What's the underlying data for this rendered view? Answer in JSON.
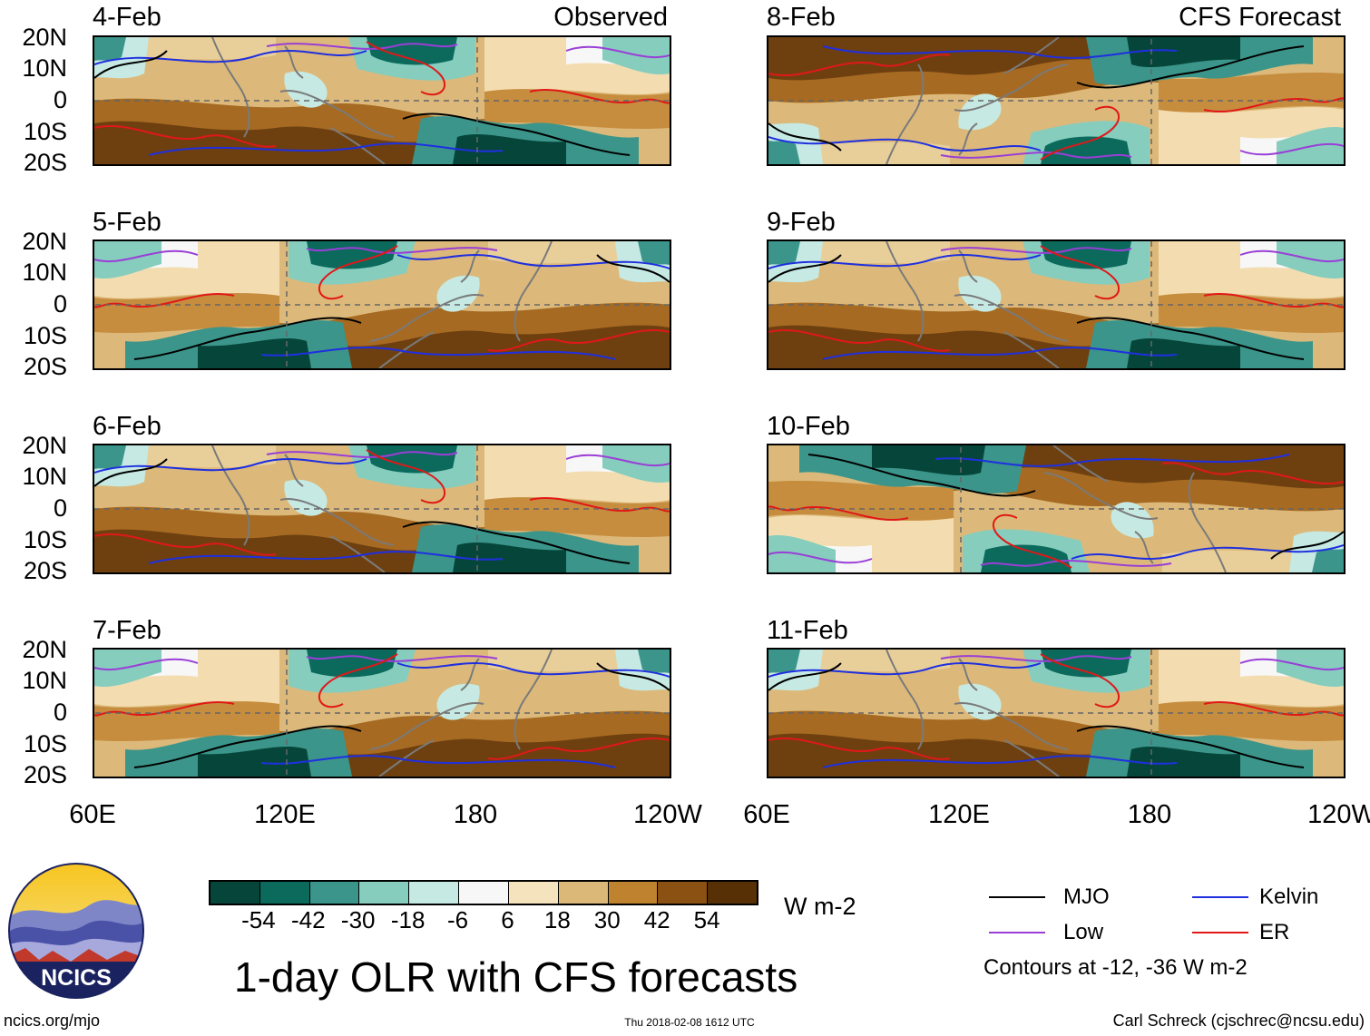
{
  "labels": {
    "observed": "Observed",
    "forecast": "CFS Forecast"
  },
  "panels_left": [
    {
      "date": "4-Feb"
    },
    {
      "date": "5-Feb"
    },
    {
      "date": "6-Feb"
    },
    {
      "date": "7-Feb"
    }
  ],
  "panels_right": [
    {
      "date": "8-Feb"
    },
    {
      "date": "9-Feb"
    },
    {
      "date": "10-Feb"
    },
    {
      "date": "11-Feb"
    }
  ],
  "y_ticks": [
    "20N",
    "10N",
    "0",
    "10S",
    "20S"
  ],
  "x_ticks": [
    "60E",
    "120E",
    "180",
    "120W"
  ],
  "colorbar": {
    "labels": [
      "-54",
      "-42",
      "-30",
      "-18",
      "-6",
      "6",
      "18",
      "30",
      "42",
      "54"
    ],
    "unit": "W m-2",
    "colors": [
      "#06463a",
      "#0b6a5c",
      "#3b958a",
      "#86cdbe",
      "#c6eae3",
      "#f7f7f7",
      "#f5e3bd",
      "#dbb877",
      "#bf822f",
      "#8b5113",
      "#573006"
    ]
  },
  "legend": {
    "mjo": {
      "label": "MJO",
      "color": "#000000"
    },
    "kelvin": {
      "label": "Kelvin",
      "color": "#1f2fe0"
    },
    "low": {
      "label": "Low",
      "color": "#9a3ed6"
    },
    "er": {
      "label": "ER",
      "color": "#e01818"
    },
    "note": "Contours at -12, -36 W m-2"
  },
  "title": "1-day OLR with CFS forecasts",
  "logo": {
    "text": "NCICS"
  },
  "footer": {
    "left": "ncics.org/mjo",
    "center": "Thu 2018-02-08 1612 UTC",
    "right": "Carl Schreck (cjschrec@ncsu.edu)"
  }
}
